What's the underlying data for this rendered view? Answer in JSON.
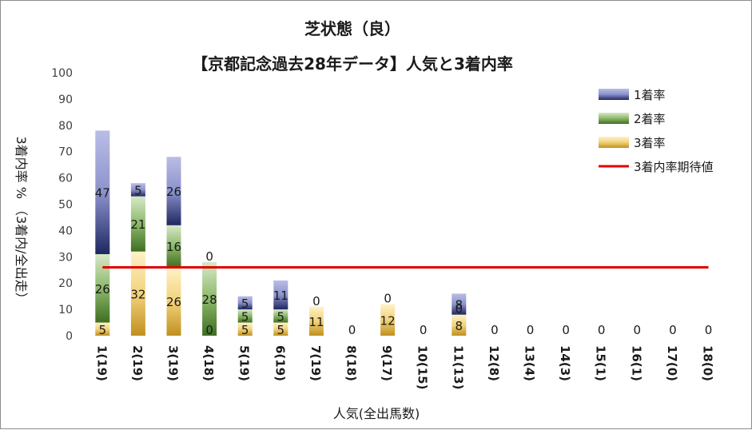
{
  "chart_data": {
    "type": "bar",
    "stacked": true,
    "title": "芝状態（良）",
    "subtitle": "【京都記念過去28年データ】人気と3着内率",
    "xlabel": "人気(全出馬数)",
    "ylabel": "3着内率 %  （3着内/全出走）",
    "ylim": [
      0,
      100
    ],
    "yticks": [
      0,
      10,
      20,
      30,
      40,
      50,
      60,
      70,
      80,
      90,
      100
    ],
    "categories": [
      "1(19)",
      "2(19)",
      "3(19)",
      "4(18)",
      "5(19)",
      "6(19)",
      "7(19)",
      "8(18)",
      "9(17)",
      "10(15)",
      "11(13)",
      "12(8)",
      "13(4)",
      "14(3)",
      "15(1)",
      "16(1)",
      "17(0)",
      "18(0)"
    ],
    "series": [
      {
        "name": "3着率",
        "values": [
          5,
          32,
          26,
          0,
          5,
          5,
          11,
          0,
          12,
          0,
          8,
          0,
          0,
          0,
          0,
          0,
          0,
          0
        ],
        "color": "#c9a033"
      },
      {
        "name": "2着率",
        "values": [
          26,
          21,
          16,
          28,
          5,
          5,
          0,
          0,
          0,
          0,
          0,
          0,
          0,
          0,
          0,
          0,
          0,
          0
        ],
        "color": "#5e8c3a"
      },
      {
        "name": "1着率",
        "values": [
          47,
          5,
          26,
          0,
          5,
          11,
          0,
          0,
          0,
          0,
          8,
          0,
          0,
          0,
          0,
          0,
          0,
          0
        ],
        "color": "#2e3a80"
      }
    ],
    "labels": {
      "3着率": [
        "5",
        "32",
        "26",
        "0",
        "5",
        "5",
        "11",
        "0",
        "12",
        "0",
        "8",
        "0",
        "0",
        "0",
        "0",
        "0",
        "0",
        "0"
      ],
      "2着率": [
        "26",
        "21",
        "16",
        "28",
        "5",
        "5",
        "",
        "",
        "",
        "",
        "0",
        "",
        "",
        "",
        "",
        "",
        "",
        ""
      ],
      "1着率": [
        "47",
        "5",
        "26",
        "0",
        "5",
        "11",
        "0",
        "",
        "0",
        "",
        "8",
        "",
        "",
        "",
        "",
        "",
        "",
        ""
      ]
    },
    "expected_line": {
      "name": "3着内率期待値",
      "value": 26,
      "color": "#e00000"
    },
    "legend": [
      "1着率",
      "2着率",
      "3着率",
      "3着内率期待値"
    ],
    "legend_position": "top-right",
    "grid": false
  }
}
